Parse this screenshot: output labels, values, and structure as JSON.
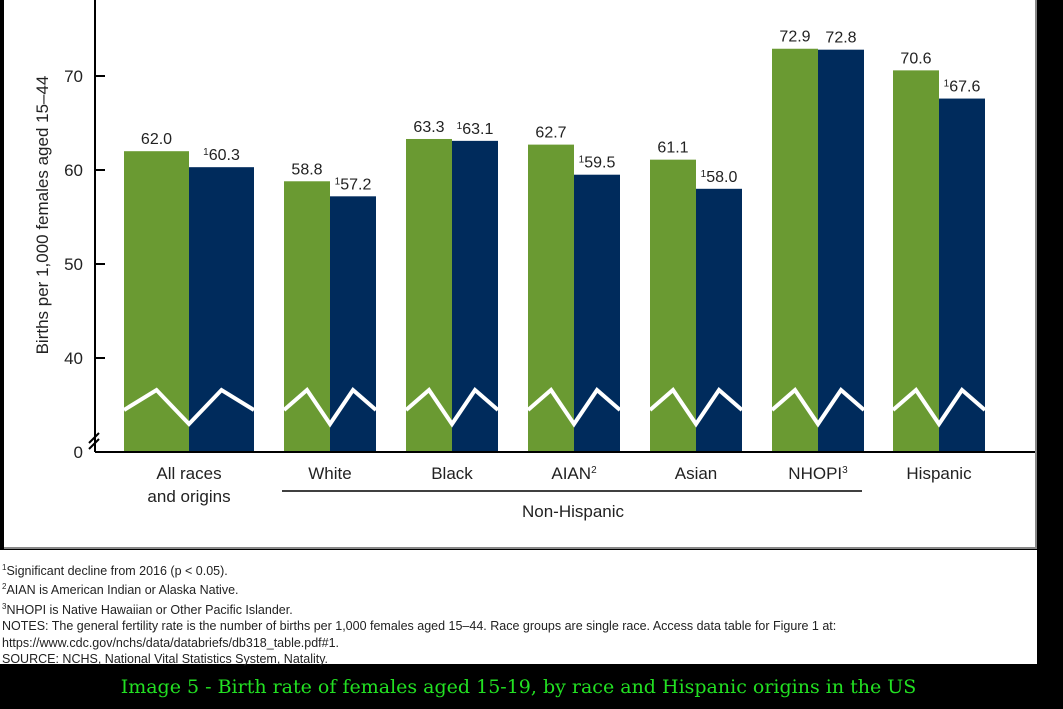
{
  "chart_data": {
    "type": "bar",
    "ylabel": "Births per 1,000 females aged 15–44",
    "ylim": [
      0,
      77
    ],
    "y_break": true,
    "yticks": [
      "0",
      "40",
      "50",
      "60",
      "70"
    ],
    "categories": [
      "All races and origins",
      "White",
      "Black",
      "AIAN",
      "Asian",
      "NHOPI",
      "Hispanic"
    ],
    "category_lines": [
      [
        "All races",
        "and origins"
      ],
      [
        "White"
      ],
      [
        "Black"
      ],
      [
        "AIAN",
        "2"
      ],
      [
        "Asian"
      ],
      [
        "NHOPI",
        "3"
      ],
      [
        "Hispanic"
      ]
    ],
    "group_label": "Non-Hispanic",
    "series": [
      {
        "color": "#6a9a32",
        "values": [
          62.0,
          58.8,
          63.3,
          62.7,
          61.1,
          72.9,
          70.6
        ],
        "labels": [
          "62.0",
          "58.8",
          "63.3",
          "62.7",
          "61.1",
          "72.9",
          "70.6"
        ],
        "flags": [
          "",
          "",
          "",
          "",
          "",
          "",
          ""
        ]
      },
      {
        "color": "#002b5c",
        "values": [
          60.3,
          57.2,
          63.1,
          59.5,
          58.0,
          72.8,
          67.6
        ],
        "labels": [
          "60.3",
          "57.2",
          "63.1",
          "59.5",
          "58.0",
          "72.8",
          "67.6"
        ],
        "flags": [
          "1",
          "1",
          "1",
          "1",
          "1",
          "",
          "1"
        ]
      }
    ]
  },
  "notes": [
    {
      "sup": "1",
      "text": "Significant decline from 2016 (p < 0.05)."
    },
    {
      "sup": "2",
      "text": "AIAN is American Indian or Alaska Native."
    },
    {
      "sup": "3",
      "text": "NHOPI is Native Hawaiian or Other Pacific Islander."
    },
    {
      "sup": "",
      "text": "NOTES: The general fertility rate is the number of births per 1,000 females aged 15–44. Race groups are single race. Access data table for Figure 1 at:"
    },
    {
      "sup": "",
      "text": "https://www.cdc.gov/nchs/data/databriefs/db318_table.pdf#1."
    },
    {
      "sup": "",
      "text": "SOURCE: NCHS, National Vital Statistics System, Natality."
    }
  ],
  "caption": "Image 5 - Birth rate of females aged 15-19, by race and Hispanic origins in the US"
}
